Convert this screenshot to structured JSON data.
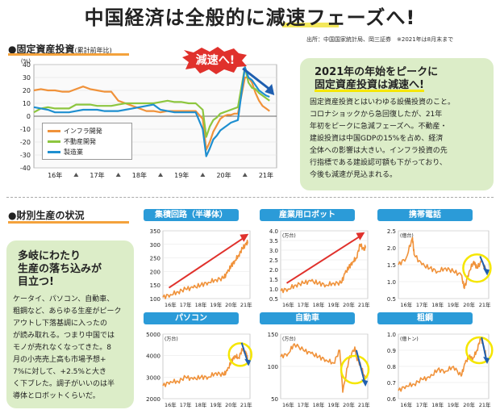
{
  "header": {
    "title": "中国経済は全般的に減速フェーズへ!",
    "source": "出所：中国国家統計局、岡三証券　※2021年は8月末まで"
  },
  "section1": {
    "title": "●固定資産投資",
    "subtitle": "(累計前年比)",
    "callout": "減速へ!",
    "box_heading_1": "2021年の年始をピークに",
    "box_heading_2": "固定資産投資は減速へ!",
    "box_body": [
      "固定資産投資とはいわゆる設備投資のこと。",
      "コロナショックから急回復したが、21年",
      "年初をピークに急減フェーズへ。不動産・",
      "建設投資は中国GDPの15%を占め、経済",
      "全体への影響は大きい。インフラ投資の先",
      "行指標である建設認可額も下がっており、",
      "今後も減速が見込まれる。"
    ]
  },
  "section2": {
    "title": "●財別生産の状況",
    "box_heading": [
      "多岐にわたり",
      "生産の落ち込みが",
      "目立つ!"
    ],
    "box_body": [
      "ケータイ、パソコン、自動車、",
      "粗鋼など、あらゆる生産がピーク",
      "アウトし下落基調に入ったの",
      "が読み取れる。つまり中国では",
      "モノが売れなくなってきた。8",
      "月の小売売上高も市場予想+",
      "7%に対して、+2.5%と大き",
      "く下ブレた。調子がいいのは半",
      "導体とロボットくらいだ。"
    ]
  },
  "colors": {
    "infra": "#f0923a",
    "realestate": "#8dc63f",
    "manufacturing": "#1e8fd0",
    "series_orange": "#f0923a",
    "arrow_red": "#e0312c",
    "arrow_blue": "#1f5fb0",
    "highlight": "#f5e600",
    "panel_bg": "#dcedc8",
    "panel_title": "#2b9bd8"
  },
  "chart_data": [
    {
      "type": "line",
      "id": "fixed_asset_investment",
      "ylabel": "(%)",
      "ylim": [
        -40,
        40
      ],
      "yticks": [
        40,
        30,
        20,
        10,
        0,
        -10,
        -20,
        -30,
        -40
      ],
      "xticks": [
        "16年",
        "17年",
        "18年",
        "19年",
        "20年",
        "21年"
      ],
      "x": [
        "2016-01",
        "2016-03",
        "2016-05",
        "2016-07",
        "2016-09",
        "2016-11",
        "2017-01",
        "2017-03",
        "2017-05",
        "2017-07",
        "2017-09",
        "2017-11",
        "2018-01",
        "2018-03",
        "2018-05",
        "2018-07",
        "2018-09",
        "2018-11",
        "2019-01",
        "2019-03",
        "2019-05",
        "2019-07",
        "2019-09",
        "2019-11",
        "2020-01",
        "2020-02",
        "2020-03",
        "2020-04",
        "2020-05",
        "2020-06",
        "2020-07",
        "2020-08",
        "2020-09",
        "2020-10",
        "2020-11",
        "2021-01",
        "2021-02",
        "2021-03",
        "2021-04",
        "2021-05",
        "2021-06",
        "2021-07",
        "2021-08"
      ],
      "series": [
        {
          "name": "インフラ開発",
          "color": "#f0923a",
          "values": [
            20,
            21,
            20,
            20,
            19,
            19,
            21,
            23,
            21,
            20,
            19,
            19,
            12,
            10,
            8,
            6,
            4,
            4,
            3,
            4,
            4,
            4,
            4,
            4,
            -2,
            -26,
            -20,
            -12,
            -7,
            -2,
            0,
            1,
            1,
            2,
            2,
            30,
            30,
            26,
            18,
            12,
            8,
            6,
            4
          ]
        },
        {
          "name": "不動産開発",
          "color": "#8dc63f",
          "values": [
            3,
            6,
            7,
            6,
            6,
            6,
            9,
            9,
            9,
            8,
            8,
            8,
            9,
            10,
            10,
            10,
            10,
            10,
            11,
            12,
            11,
            11,
            10,
            10,
            5,
            -16,
            -8,
            -3,
            -1,
            2,
            3,
            4,
            5,
            6,
            7,
            38,
            26,
            22,
            21,
            18,
            16,
            14,
            12
          ]
        },
        {
          "name": "製造業",
          "color": "#1e8fd0",
          "values": [
            7,
            6,
            5,
            3,
            3,
            3,
            4,
            5,
            5,
            5,
            4,
            4,
            4,
            5,
            6,
            7,
            8,
            9,
            5,
            4,
            3,
            3,
            3,
            3,
            -10,
            -31,
            -25,
            -18,
            -15,
            -11,
            -9,
            -7,
            -5,
            -4,
            -3,
            38,
            30,
            28,
            24,
            20,
            18,
            16,
            15
          ]
        }
      ]
    },
    {
      "type": "line",
      "id": "ic",
      "title": "集積回路（半導体）",
      "ylabel": "",
      "ylim": [
        100,
        350
      ],
      "yticks": [
        350,
        300,
        250,
        200,
        150,
        100
      ],
      "xticks": [
        "16年",
        "17年",
        "18年",
        "19年",
        "20年",
        "21年"
      ],
      "x": [
        2016,
        2016.5,
        2017,
        2017.5,
        2018,
        2018.5,
        2019,
        2019.5,
        2020,
        2020.25,
        2020.5,
        2020.75,
        2021,
        2021.25,
        2021.5,
        2021.6
      ],
      "values": [
        105,
        115,
        125,
        135,
        140,
        150,
        160,
        170,
        175,
        195,
        220,
        240,
        260,
        285,
        300,
        310
      ]
    },
    {
      "type": "line",
      "id": "robot",
      "title": "産業用ロボット",
      "ylabel": "(万台)",
      "ylim": [
        0.5,
        4.0
      ],
      "yticks": [
        4.0,
        3.5,
        3.0,
        2.5,
        2.0,
        1.5,
        1.0,
        0.5
      ],
      "xticks": [
        "16年",
        "17年",
        "18年",
        "19年",
        "20年",
        "21年"
      ],
      "x": [
        2016,
        2016.5,
        2017,
        2017.5,
        2018,
        2018.5,
        2019,
        2019.5,
        2020,
        2020.25,
        2020.5,
        2020.75,
        2021,
        2021.25,
        2021.5,
        2021.6
      ],
      "values": [
        0.9,
        1.0,
        1.2,
        1.3,
        1.4,
        1.3,
        1.2,
        1.3,
        1.3,
        1.8,
        2.1,
        2.4,
        2.6,
        3.3,
        3.0,
        3.2
      ]
    },
    {
      "type": "line",
      "id": "mobile",
      "title": "携帯電話",
      "ylabel": "(億台)",
      "ylim": [
        0.5,
        2.5
      ],
      "yticks": [
        2.5,
        2.0,
        1.5,
        1.0,
        0.5
      ],
      "xticks": [
        "16年",
        "17年",
        "18年",
        "19年",
        "20年",
        "21年"
      ],
      "x": [
        2016,
        2016.5,
        2016.9,
        2017,
        2017.5,
        2018,
        2018.5,
        2019,
        2019.5,
        2020,
        2020.2,
        2020.5,
        2020.8,
        2021,
        2021.3,
        2021.6
      ],
      "values": [
        1.5,
        1.7,
        2.3,
        1.8,
        1.5,
        1.4,
        1.3,
        1.4,
        1.3,
        1.2,
        0.8,
        1.3,
        1.6,
        1.4,
        1.6,
        1.3
      ]
    },
    {
      "type": "line",
      "id": "pc",
      "title": "パソコン",
      "ylabel": "(万台)",
      "ylim": [
        2000,
        5000
      ],
      "yticks": [
        5000,
        4000,
        3000,
        2000
      ],
      "xticks": [
        "16年",
        "17年",
        "18年",
        "19年",
        "20年",
        "21年"
      ],
      "x": [
        2016,
        2016.5,
        2017,
        2017.5,
        2018,
        2018.5,
        2019,
        2019.5,
        2020,
        2020.25,
        2020.5,
        2020.75,
        2021,
        2021.25,
        2021.5,
        2021.6
      ],
      "values": [
        2600,
        2800,
        2800,
        3000,
        2900,
        3000,
        3000,
        3200,
        3100,
        3300,
        3700,
        4000,
        3900,
        4300,
        4100,
        3800
      ]
    },
    {
      "type": "line",
      "id": "auto",
      "title": "自動車",
      "ylabel": "(万台)",
      "ylim": [
        50,
        150
      ],
      "yticks": [
        150,
        100,
        50
      ],
      "xticks": [
        "16年",
        "17年",
        "18年",
        "19年",
        "20年",
        "21年"
      ],
      "x": [
        2016,
        2016.5,
        2016.9,
        2017.5,
        2018,
        2018.5,
        2019,
        2019.5,
        2019.9,
        2020.1,
        2020.5,
        2020.9,
        2021,
        2021.3,
        2021.6
      ],
      "values": [
        115,
        120,
        135,
        125,
        120,
        115,
        110,
        105,
        125,
        60,
        110,
        130,
        115,
        100,
        80
      ]
    },
    {
      "type": "line",
      "id": "steel",
      "title": "粗鋼",
      "ylabel": "(億トン)",
      "ylim": [
        0.6,
        1.0
      ],
      "yticks": [
        1.0,
        0.9,
        0.8,
        0.7,
        0.6
      ],
      "xticks": [
        "16年",
        "17年",
        "18年",
        "19年",
        "20年",
        "21年"
      ],
      "x": [
        2016,
        2016.5,
        2017,
        2017.5,
        2018,
        2018.5,
        2019,
        2019.5,
        2020,
        2020.25,
        2020.5,
        2020.75,
        2021,
        2021.25,
        2021.4,
        2021.6
      ],
      "values": [
        0.65,
        0.68,
        0.69,
        0.72,
        0.73,
        0.78,
        0.77,
        0.8,
        0.74,
        0.82,
        0.86,
        0.85,
        0.9,
        0.98,
        0.93,
        0.86
      ]
    }
  ]
}
